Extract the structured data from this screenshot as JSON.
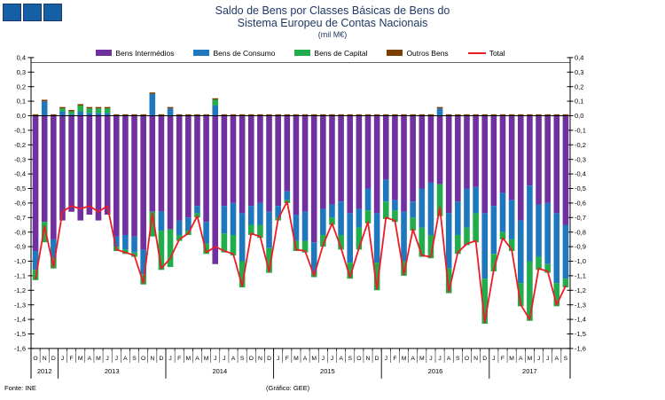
{
  "logo": {
    "squares": 3,
    "fill": "#1560A5",
    "border": "#1F3864"
  },
  "title": {
    "line1": "Saldo de Bens por Classes Básicas de Bens do",
    "line2": "Sistema Europeu de Contas Nacionais",
    "subtitle": "(mil M€)",
    "color": "#1F3864"
  },
  "footer": {
    "source": "Fonte: INE",
    "credit": "(Gráfico:  GEE)"
  },
  "chart_data": {
    "type": "bar",
    "subtype": "stacked-bars-with-total-line",
    "unit": "mil M€",
    "ylim": [
      -1.6,
      0.4
    ],
    "ytick_step": 0.1,
    "decimal_separator": ",",
    "grid": false,
    "legend_position": "top",
    "legend": [
      {
        "label": "Bens Intermédios",
        "color": "#7030A0",
        "swatch": "box"
      },
      {
        "label": "Bens de Consumo",
        "color": "#1F78BE",
        "swatch": "box"
      },
      {
        "label": "Bens de Capital",
        "color": "#21AD4B",
        "swatch": "box"
      },
      {
        "label": "Outros Bens",
        "color": "#7B3F00",
        "swatch": "box"
      },
      {
        "label": "Total",
        "color": "#ED1C24",
        "swatch": "line"
      }
    ],
    "years": [
      {
        "label": "2012",
        "n": 3
      },
      {
        "label": "2013",
        "n": 12
      },
      {
        "label": "2014",
        "n": 12
      },
      {
        "label": "2015",
        "n": 12
      },
      {
        "label": "2016",
        "n": 12
      },
      {
        "label": "2017",
        "n": 9
      }
    ],
    "months": [
      "O",
      "N",
      "D",
      "J",
      "F",
      "M",
      "A",
      "M",
      "J",
      "J",
      "A",
      "S",
      "O",
      "N",
      "D",
      "J",
      "F",
      "M",
      "A",
      "M",
      "J",
      "J",
      "A",
      "S",
      "O",
      "N",
      "D",
      "J",
      "F",
      "M",
      "A",
      "M",
      "J",
      "J",
      "A",
      "S",
      "O",
      "N",
      "D",
      "J",
      "F",
      "M",
      "A",
      "M",
      "J",
      "J",
      "A",
      "S",
      "O",
      "N",
      "D",
      "J",
      "F",
      "M",
      "A",
      "M",
      "J",
      "J",
      "A",
      "S"
    ],
    "series": [
      {
        "name": "Bens Intermédios",
        "key": "intermedios",
        "color": "#7030A0",
        "values": [
          -0.93,
          -0.73,
          -0.85,
          -0.72,
          -0.66,
          -0.72,
          -0.68,
          -0.72,
          -0.68,
          -0.83,
          -0.82,
          -0.83,
          -0.92,
          -0.66,
          -0.66,
          -0.78,
          -0.72,
          -0.7,
          -0.62,
          -0.73,
          -1.02,
          -0.62,
          -0.6,
          -0.67,
          -0.62,
          -0.6,
          -0.66,
          -0.62,
          -0.52,
          -0.68,
          -0.66,
          -0.87,
          -0.64,
          -0.61,
          -0.59,
          -0.67,
          -0.64,
          -0.5,
          -0.67,
          -0.44,
          -0.58,
          -0.66,
          -0.59,
          -0.5,
          -0.46,
          -0.47,
          -0.67,
          -0.59,
          -0.5,
          -0.49,
          -0.67,
          -0.62,
          -0.53,
          -0.58,
          -0.72,
          -0.48,
          -0.61,
          -0.6,
          -0.67,
          -0.75
        ]
      },
      {
        "name": "Bens de Consumo",
        "key": "consumo",
        "color": "#1F78BE",
        "values": [
          -0.13,
          0.1,
          -0.13,
          0.03,
          0.01,
          0.03,
          0.02,
          0.02,
          0.02,
          -0.07,
          -0.1,
          -0.11,
          -0.17,
          0.15,
          -0.13,
          0.05,
          -0.1,
          -0.09,
          -0.05,
          -0.15,
          0.07,
          -0.19,
          -0.22,
          -0.33,
          -0.13,
          -0.15,
          -0.25,
          -0.08,
          -0.06,
          -0.18,
          -0.2,
          -0.21,
          -0.18,
          -0.09,
          -0.23,
          -0.34,
          -0.13,
          -0.15,
          -0.34,
          -0.15,
          -0.07,
          -0.34,
          -0.11,
          -0.27,
          -0.36,
          0.05,
          -0.38,
          -0.23,
          -0.27,
          -0.18,
          -0.45,
          -0.33,
          -0.27,
          -0.27,
          -0.43,
          -0.52,
          -0.36,
          -0.42,
          -0.48,
          -0.37
        ]
      },
      {
        "name": "Bens de Capital",
        "key": "capital",
        "color": "#21AD4B",
        "values": [
          -0.07,
          -0.14,
          -0.07,
          0.02,
          0.02,
          0.04,
          0.03,
          0.03,
          0.03,
          -0.03,
          -0.03,
          -0.03,
          -0.07,
          -0.17,
          -0.27,
          -0.26,
          -0.04,
          -0.03,
          -0.03,
          -0.07,
          0.04,
          -0.13,
          -0.14,
          -0.18,
          -0.07,
          -0.09,
          -0.17,
          -0.02,
          -0.02,
          -0.07,
          -0.08,
          -0.03,
          -0.08,
          -0.05,
          -0.1,
          -0.11,
          -0.15,
          -0.09,
          -0.19,
          -0.12,
          -0.08,
          -0.1,
          -0.09,
          -0.2,
          -0.16,
          -0.22,
          -0.17,
          -0.13,
          -0.12,
          -0.2,
          -0.31,
          -0.12,
          -0.05,
          -0.08,
          -0.16,
          -0.41,
          -0.09,
          -0.06,
          -0.16,
          -0.06
        ]
      },
      {
        "name": "Outros Bens",
        "key": "outros",
        "color": "#7B3F00",
        "values": [
          0.01,
          0.01,
          0.01,
          0.01,
          0.01,
          0.01,
          0.01,
          0.01,
          0.01,
          0.01,
          0.01,
          0.01,
          0.01,
          0.01,
          0.01,
          0.01,
          0.01,
          0.01,
          0.01,
          0.01,
          0.01,
          0.01,
          0.01,
          0.01,
          0.01,
          0.01,
          0.01,
          0.01,
          0.01,
          0.01,
          0.01,
          0.01,
          0.01,
          0.01,
          0.01,
          0.01,
          0.01,
          0.01,
          0.01,
          0.01,
          0.01,
          0.01,
          0.01,
          0.01,
          0.01,
          0.01,
          0.01,
          0.01,
          0.01,
          0.01,
          0.01,
          0.01,
          0.01,
          0.01,
          0.01,
          0.01,
          0.01,
          0.01,
          0.01,
          0.01
        ]
      }
    ],
    "total": {
      "name": "Total",
      "color": "#ED1C24",
      "values": [
        -1.12,
        -0.76,
        -1.04,
        -0.66,
        -0.62,
        -0.64,
        -0.62,
        -0.66,
        -0.62,
        -0.92,
        -0.94,
        -0.96,
        -1.15,
        -0.67,
        -1.05,
        -0.98,
        -0.85,
        -0.81,
        -0.69,
        -0.94,
        -0.9,
        -0.93,
        -0.95,
        -1.17,
        -0.81,
        -0.83,
        -1.07,
        -0.71,
        -0.59,
        -0.92,
        -0.93,
        -1.1,
        -0.89,
        -0.74,
        -0.91,
        -1.11,
        -0.91,
        -0.73,
        -1.19,
        -0.7,
        -0.72,
        -1.09,
        -0.78,
        -0.96,
        -0.97,
        -0.63,
        -1.21,
        -0.94,
        -0.88,
        -0.86,
        -1.42,
        -1.06,
        -0.84,
        -0.92,
        -1.3,
        -1.4,
        -1.05,
        -1.07,
        -1.3,
        -1.17
      ]
    }
  }
}
